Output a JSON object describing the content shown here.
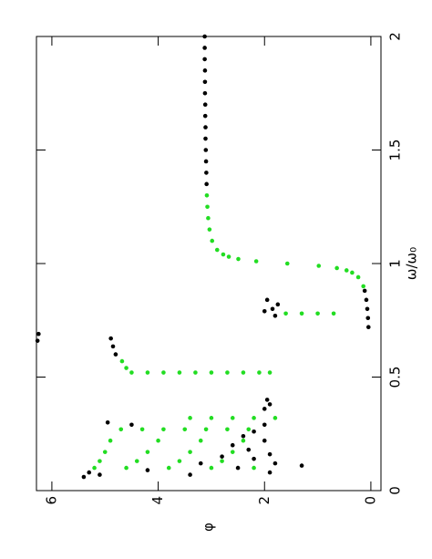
{
  "chart_data": {
    "type": "scatter",
    "x_label": "ω/ω₀",
    "y_label": "φ",
    "xlim": [
      0,
      2
    ],
    "ylim": [
      -0.19,
      6.29
    ],
    "xticks": [
      0,
      0.5,
      1,
      1.5,
      2
    ],
    "yticks": [
      0,
      2,
      4,
      6
    ],
    "series": [
      {
        "color": "#000000",
        "x": [
          0.72,
          0.76,
          0.8,
          0.84,
          0.88,
          1.35,
          1.4,
          1.45,
          1.5,
          1.55,
          1.6,
          1.65,
          1.7,
          1.75,
          1.8,
          1.85,
          1.9,
          1.95,
          2.0,
          0.69,
          0.66,
          0.67,
          0.635,
          0.6,
          0.8,
          0.82,
          0.84,
          0.79,
          0.77,
          0.36,
          0.38,
          0.4,
          0.3,
          0.29,
          0.29,
          0.26,
          0.24,
          0.22,
          0.2,
          0.18,
          0.16,
          0.15,
          0.14,
          0.12,
          0.12,
          0.1,
          0.09,
          0.08,
          0.07,
          0.06,
          0.08,
          0.11,
          0.07
        ],
        "y": [
          0.045,
          0.054,
          0.067,
          0.085,
          0.116,
          3.09,
          3.095,
          3.1,
          3.105,
          3.11,
          3.11,
          3.115,
          3.115,
          3.12,
          3.12,
          3.12,
          3.125,
          3.125,
          3.125,
          6.25,
          6.27,
          4.89,
          4.85,
          4.8,
          1.85,
          1.75,
          1.95,
          2.0,
          1.8,
          2.0,
          1.9,
          1.95,
          4.95,
          4.5,
          2.0,
          2.2,
          2.4,
          2.0,
          2.6,
          2.3,
          1.9,
          2.8,
          2.2,
          1.8,
          3.2,
          2.5,
          4.2,
          5.3,
          5.1,
          5.4,
          1.9,
          1.3,
          3.4
        ]
      },
      {
        "color": "#22dd22",
        "x": [
          0.9,
          0.94,
          0.96,
          0.97,
          0.98,
          0.99,
          1.0,
          1.01,
          1.02,
          1.03,
          1.04,
          1.06,
          1.1,
          1.15,
          1.2,
          1.25,
          1.3,
          0.57,
          0.54,
          0.52,
          0.52,
          0.52,
          0.52,
          0.52,
          0.52,
          0.52,
          0.52,
          0.52,
          0.52,
          0.78,
          0.78,
          0.78,
          0.78,
          0.32,
          0.32,
          0.32,
          0.32,
          0.32,
          0.27,
          0.27,
          0.27,
          0.27,
          0.27,
          0.27,
          0.27,
          0.22,
          0.22,
          0.22,
          0.22,
          0.17,
          0.17,
          0.17,
          0.17,
          0.13,
          0.13,
          0.13,
          0.13,
          0.1,
          0.1,
          0.1,
          0.1,
          0.1
        ],
        "y": [
          0.141,
          0.237,
          0.352,
          0.457,
          0.639,
          0.98,
          1.571,
          2.156,
          2.493,
          2.672,
          2.777,
          2.891,
          2.986,
          3.035,
          3.06,
          3.075,
          3.085,
          4.68,
          4.6,
          4.5,
          4.2,
          3.9,
          3.6,
          3.3,
          3.0,
          2.7,
          2.4,
          2.1,
          1.9,
          1.6,
          1.3,
          1.0,
          0.7,
          3.4,
          3.0,
          2.6,
          2.2,
          1.8,
          4.7,
          4.3,
          3.9,
          3.5,
          3.1,
          2.7,
          2.3,
          4.9,
          4.0,
          3.2,
          2.4,
          5.0,
          4.2,
          3.4,
          2.6,
          5.1,
          4.4,
          3.6,
          2.8,
          5.2,
          4.6,
          3.8,
          3.0,
          2.2
        ]
      }
    ]
  }
}
